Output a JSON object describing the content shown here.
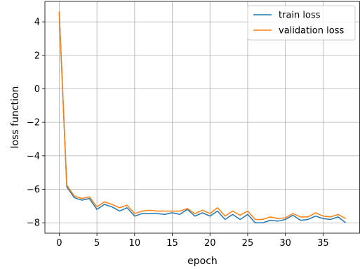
{
  "chart_data": {
    "type": "line",
    "title": "",
    "xlabel": "epoch",
    "ylabel": "loss function",
    "xlim": [
      -1.9,
      39.9
    ],
    "ylim": [
      -8.62,
      5.22
    ],
    "grid": true,
    "legend_placement": "top-right",
    "xticks": [
      0,
      5,
      10,
      15,
      20,
      25,
      30,
      35
    ],
    "xtick_labels": [
      "0",
      "5",
      "10",
      "15",
      "20",
      "25",
      "30",
      "35"
    ],
    "yticks": [
      4,
      2,
      0,
      -2,
      -4,
      -6,
      -8
    ],
    "ytick_labels": [
      "4",
      "2",
      "0",
      "−2",
      "−4",
      "−6",
      "−8"
    ],
    "x": [
      0,
      1,
      2,
      3,
      4,
      5,
      6,
      7,
      8,
      9,
      10,
      11,
      12,
      13,
      14,
      15,
      16,
      17,
      18,
      19,
      20,
      21,
      22,
      23,
      24,
      25,
      26,
      27,
      28,
      29,
      30,
      31,
      32,
      33,
      34,
      35,
      36,
      37,
      38
    ],
    "series": [
      {
        "name": "train loss",
        "color": "#1f77b4",
        "values": [
          4.6,
          -5.85,
          -6.5,
          -6.65,
          -6.55,
          -7.2,
          -6.9,
          -7.05,
          -7.3,
          -7.1,
          -7.6,
          -7.45,
          -7.45,
          -7.45,
          -7.5,
          -7.4,
          -7.5,
          -7.2,
          -7.6,
          -7.4,
          -7.6,
          -7.3,
          -7.8,
          -7.5,
          -7.8,
          -7.5,
          -8.0,
          -8.0,
          -7.85,
          -7.9,
          -7.8,
          -7.55,
          -7.85,
          -7.8,
          -7.6,
          -7.75,
          -7.8,
          -7.65,
          -8.0
        ]
      },
      {
        "name": "validation loss",
        "color": "#ff7f0e",
        "values": [
          4.6,
          -5.75,
          -6.4,
          -6.55,
          -6.45,
          -7.05,
          -6.75,
          -6.9,
          -7.1,
          -6.95,
          -7.45,
          -7.3,
          -7.25,
          -7.3,
          -7.3,
          -7.3,
          -7.3,
          -7.15,
          -7.45,
          -7.25,
          -7.45,
          -7.1,
          -7.6,
          -7.3,
          -7.55,
          -7.3,
          -7.8,
          -7.8,
          -7.65,
          -7.75,
          -7.7,
          -7.45,
          -7.65,
          -7.65,
          -7.4,
          -7.6,
          -7.65,
          -7.5,
          -7.75
        ]
      }
    ]
  }
}
